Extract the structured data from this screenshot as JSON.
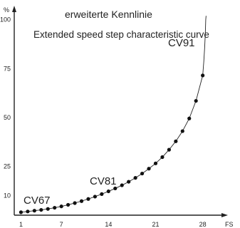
{
  "chart_data": {
    "type": "scatter",
    "title": "erweiterte Kennlinie",
    "subtitle": "Extended speed step characteristic curve",
    "xlabel": "FS",
    "ylabel": "%",
    "xlim": [
      0,
      31
    ],
    "ylim": [
      0,
      105
    ],
    "x_ticks": [
      "1",
      "7",
      "14",
      "21",
      "28"
    ],
    "y_ticks": [
      "10",
      "25",
      "50",
      "75",
      "100"
    ],
    "grid": false,
    "curve_color": "#222222",
    "point_color": "#111111",
    "annotations": [
      "CV67",
      "CV81",
      "CV91"
    ],
    "series": [
      {
        "x": [
          1,
          2,
          3,
          4,
          5,
          6,
          7,
          8,
          9,
          10,
          11,
          12,
          13,
          14,
          15,
          16,
          17,
          18,
          19,
          20,
          21,
          22,
          23,
          24,
          25,
          26,
          27,
          28
        ],
        "y": [
          1.5,
          1.9,
          2.3,
          2.7,
          3.2,
          3.8,
          4.5,
          5.3,
          6.2,
          7.2,
          8.3,
          9.5,
          10.8,
          12.2,
          13.7,
          15.3,
          17.1,
          19.1,
          21.3,
          23.8,
          26.5,
          29.7,
          33.5,
          37.8,
          43.0,
          49.5,
          58.5,
          71.5
        ]
      }
    ]
  }
}
